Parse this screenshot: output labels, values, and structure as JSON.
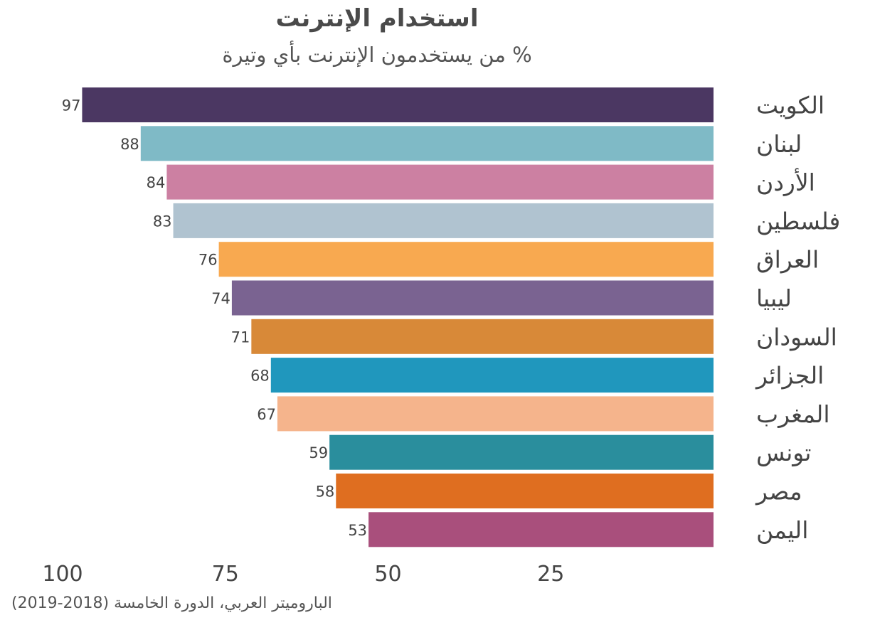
{
  "chart_data": {
    "type": "bar",
    "orientation": "horizontal",
    "title": "استخدام الإنترنت",
    "subtitle": "% من يستخدمون الإنترنت بأي وتيرة",
    "caption": "الباروميتر العربي، الدورة الخامسة (2018-2019)",
    "categories": [
      "الكويت",
      "لبنان",
      "الأردن",
      "فلسطين",
      "العراق",
      "ليبيا",
      "السودان",
      "الجزائر",
      "المغرب",
      "تونس",
      "مصر",
      "اليمن"
    ],
    "values": [
      97,
      88,
      84,
      83,
      76,
      74,
      71,
      68,
      67,
      59,
      58,
      53
    ],
    "colors": [
      "#4b3762",
      "#7fbac6",
      "#cc80a2",
      "#b0c3d0",
      "#f8a950",
      "#7a6391",
      "#d88938",
      "#2097bd",
      "#f5b48c",
      "#2a8e9d",
      "#df6e20",
      "#a94f7c"
    ],
    "xlim": [
      0,
      100
    ],
    "x_direction": "reversed",
    "x_ticks": [
      100,
      75,
      50,
      25
    ],
    "x_tick_labels": [
      "100",
      "75",
      "50",
      "25"
    ],
    "grid": false,
    "legend": "none"
  }
}
